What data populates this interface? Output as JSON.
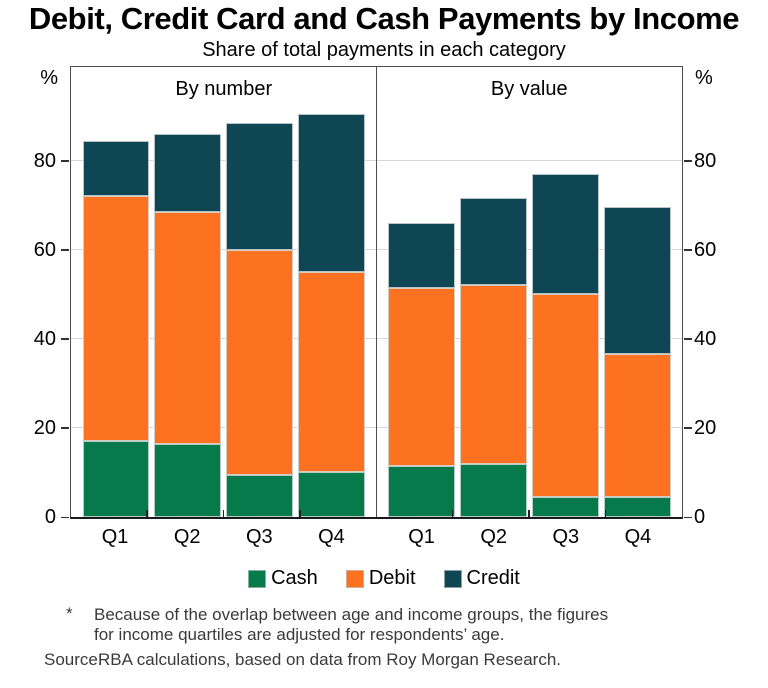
{
  "title": "Debit, Credit Card and Cash Payments by Income",
  "subtitle": "Share of total payments in each category",
  "chart_data": {
    "type": "bar",
    "stacked": true,
    "unit": "%",
    "ylim": [
      0,
      101
    ],
    "yticks": [
      0,
      20,
      40,
      60,
      80
    ],
    "grid": true,
    "categories": [
      "Q1",
      "Q2",
      "Q3",
      "Q4"
    ],
    "panels": [
      {
        "label": "By number",
        "series": [
          {
            "name": "Cash",
            "color": "#067A4A",
            "values": [
              17,
              16.5,
              9.5,
              10
            ]
          },
          {
            "name": "Debit",
            "color": "#FC7221",
            "values": [
              55,
              52,
              50.5,
              45
            ]
          },
          {
            "name": "Credit",
            "color": "#0E4653",
            "values": [
              12.5,
              17.5,
              28.5,
              35.5
            ]
          }
        ]
      },
      {
        "label": "By value",
        "series": [
          {
            "name": "Cash",
            "color": "#067A4A",
            "values": [
              11.5,
              12,
              4.5,
              4.5
            ]
          },
          {
            "name": "Debit",
            "color": "#FC7221",
            "values": [
              40,
              40,
              45.5,
              32
            ]
          },
          {
            "name": "Credit",
            "color": "#0E4653",
            "values": [
              14.5,
              19.5,
              27,
              33
            ]
          }
        ]
      }
    ],
    "legend": [
      {
        "label": "Cash",
        "color": "#067A4A"
      },
      {
        "label": "Debit",
        "color": "#FC7221"
      },
      {
        "label": "Credit",
        "color": "#0E4653"
      }
    ],
    "legend_position": "bottom"
  },
  "footnote": {
    "marker": "*",
    "lines": [
      "Because of the overlap between age and income groups, the figures",
      "for income quartiles are adjusted for respondents’ age."
    ]
  },
  "source": {
    "label": "Source:",
    "text": "RBA calculations, based on data from Roy Morgan Research."
  }
}
